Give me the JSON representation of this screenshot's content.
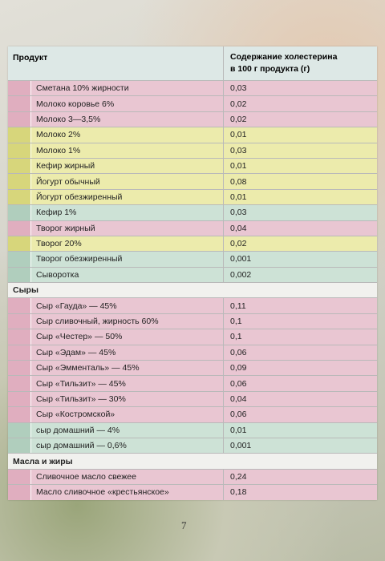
{
  "table": {
    "header": {
      "product": "Продукт",
      "value": [
        "Содержание холестерина",
        "в 100 г продукта (г)"
      ]
    },
    "rows": [
      {
        "product": "Сметана 10% жирности",
        "value": "0,03",
        "color": "#e9c6d2"
      },
      {
        "product": "Молоко коровье 6%",
        "value": "0,02",
        "color": "#e9c6d2"
      },
      {
        "product": "Молоко 3—3,5%",
        "value": "0,02",
        "color": "#e9c6d2"
      },
      {
        "product": "Молоко 2%",
        "value": "0,01",
        "color": "#ecebac"
      },
      {
        "product": "Молоко 1%",
        "value": "0,03",
        "color": "#ecebac"
      },
      {
        "product": "Кефир жирный",
        "value": "0,01",
        "color": "#ecebac"
      },
      {
        "product": "Йогурт обычный",
        "value": "0,08",
        "color": "#ecebac"
      },
      {
        "product": "Йогурт обезжиренный",
        "value": "0,01",
        "color": "#ecebac"
      },
      {
        "product": "Кефир 1%",
        "value": "0,03",
        "color": "#cde2d6"
      },
      {
        "product": "Творог жирный",
        "value": "0,04",
        "color": "#e9c6d2"
      },
      {
        "product": "Творог 20%",
        "value": "0,02",
        "color": "#ecebac"
      },
      {
        "product": "Творог обезжиренный",
        "value": "0,001",
        "color": "#cde2d6"
      },
      {
        "product": "Сыворотка",
        "value": "0,002",
        "color": "#cde2d6"
      },
      {
        "section": "Сыры"
      },
      {
        "product": "Сыр «Гауда» — 45%",
        "value": "0,11",
        "color": "#e9c6d2"
      },
      {
        "product": "Сыр сливочный, жирность 60%",
        "value": "0,1",
        "color": "#e9c6d2"
      },
      {
        "product": "Сыр «Честер» — 50%",
        "value": "0,1",
        "color": "#e9c6d2"
      },
      {
        "product": "Сыр «Эдам» — 45%",
        "value": "0,06",
        "color": "#e9c6d2"
      },
      {
        "product": "Сыр «Эмменталь» — 45%",
        "value": "0,09",
        "color": "#e9c6d2"
      },
      {
        "product": "Сыр «Тильзит» — 45%",
        "value": "0,06",
        "color": "#e9c6d2"
      },
      {
        "product": "Сыр «Тильзит» — 30%",
        "value": "0,04",
        "color": "#e9c6d2"
      },
      {
        "product": "Сыр «Костромской»",
        "value": "0,06",
        "color": "#e9c6d2"
      },
      {
        "product": "сыр домашний — 4%",
        "value": "0,01",
        "color": "#cde2d6"
      },
      {
        "product": "сыр домашний — 0,6%",
        "value": "0,001",
        "color": "#cde2d6"
      },
      {
        "section": "Масла и жиры"
      },
      {
        "product": "Сливочное масло свежее",
        "value": "0,24",
        "color": "#e9c6d2"
      },
      {
        "product": "Масло сливочное «крестьянское»",
        "value": "0,18",
        "color": "#e9c6d2"
      }
    ]
  },
  "page_number": "7"
}
